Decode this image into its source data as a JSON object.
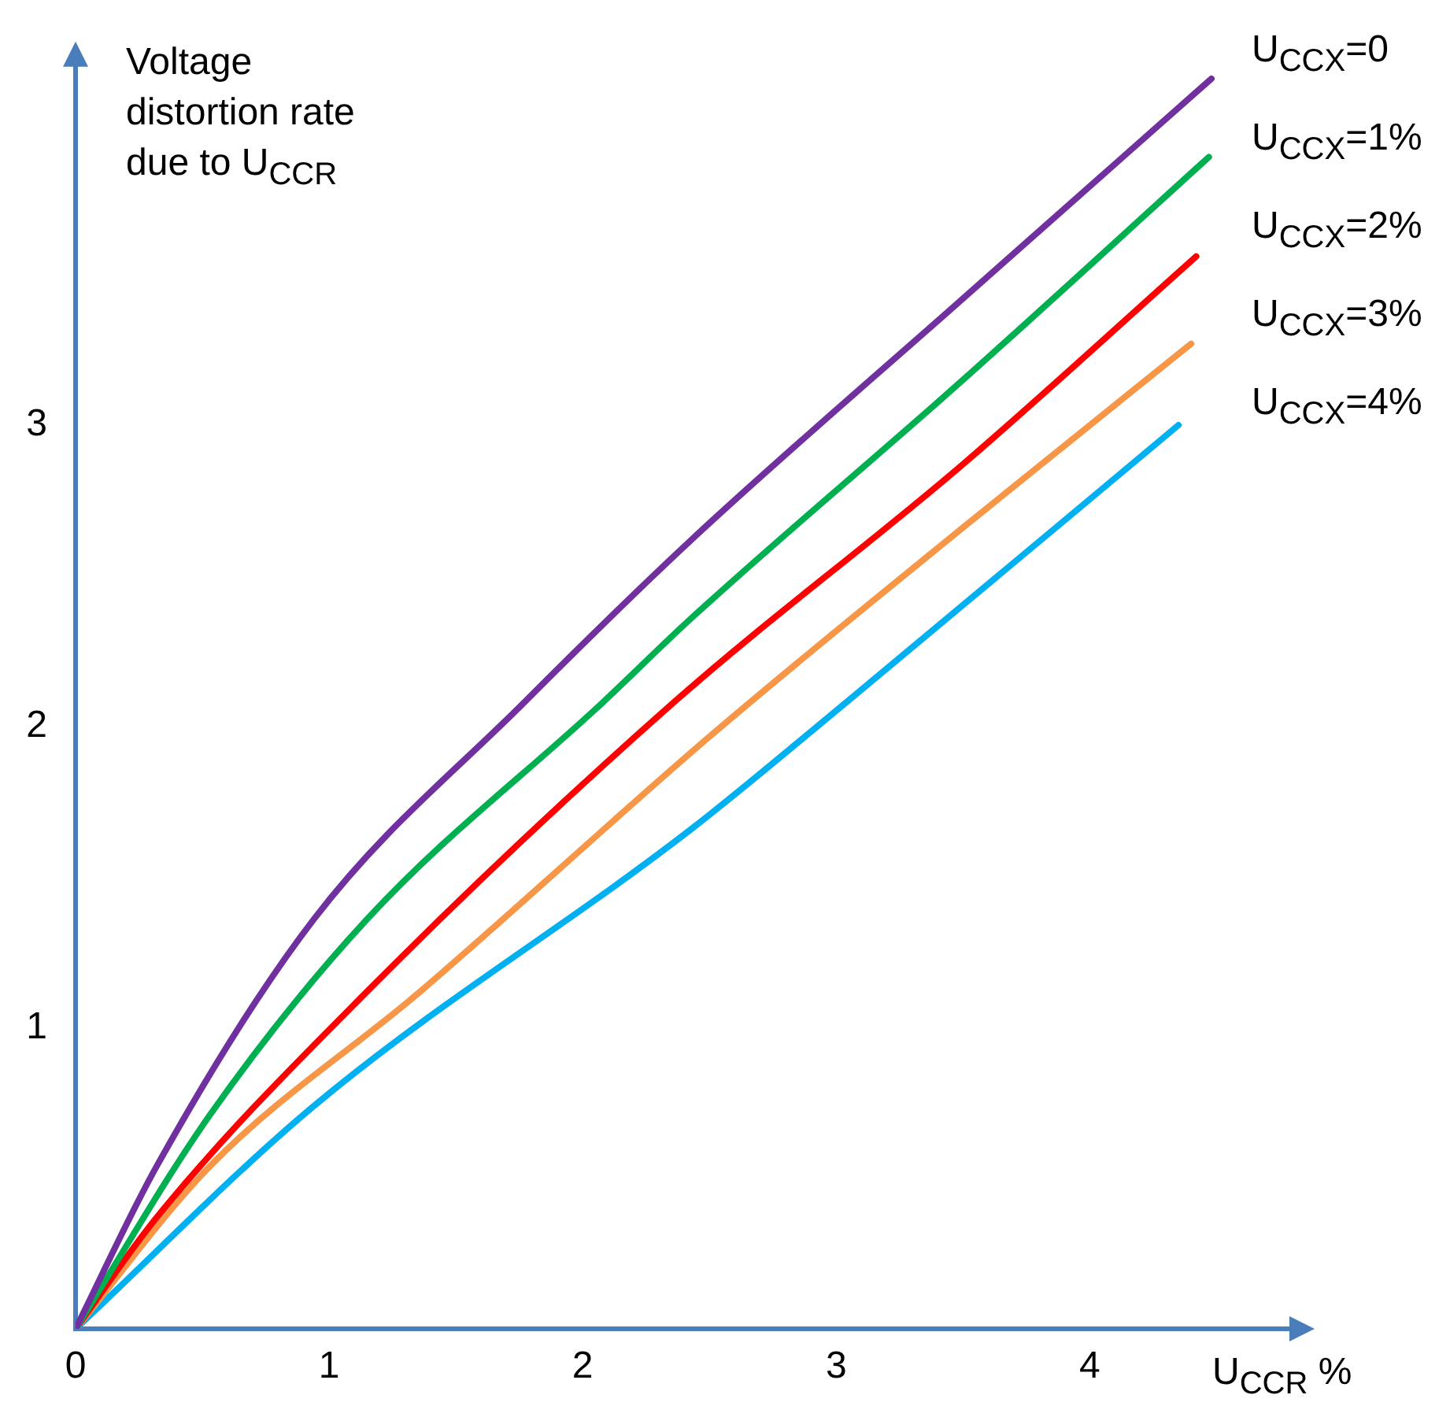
{
  "chart_data": {
    "type": "line",
    "xlabel": "U$_{CCR}$ %",
    "ylabel": "Voltage distortion rate due to U$_{CCR}$",
    "xlim": [
      0,
      4.8
    ],
    "xticks": [
      0,
      1,
      2,
      3,
      4
    ],
    "ylim": [
      0,
      4.2
    ],
    "yticks": [
      1,
      2,
      3
    ],
    "grid": false,
    "legend": false,
    "marker": "none",
    "line_style": "solid",
    "series": [
      {
        "name": "U$_{CCX}$=0",
        "color": "#7030a0",
        "x": [
          0,
          0.32,
          0.94,
          1.77,
          2.43,
          3.5,
          4.48
        ],
        "values": [
          0,
          0.54,
          1.36,
          2.08,
          2.62,
          3.42,
          4.15
        ]
      },
      {
        "name": "U$_{CCX}$=1%",
        "color": "#00b050",
        "x": [
          0,
          0.53,
          1.15,
          2.08,
          2.43,
          3.5,
          4.47
        ],
        "values": [
          0,
          0.71,
          1.36,
          2.08,
          2.36,
          3.15,
          3.89
        ]
      },
      {
        "name": "U$_{CCX}$=2%",
        "color": "#ff0000",
        "x": [
          0,
          0.32,
          1.15,
          2.36,
          3.5,
          4.42
        ],
        "values": [
          0,
          0.37,
          1.12,
          2.08,
          2.87,
          3.56
        ]
      },
      {
        "name": "U$_{CCX}$=3%",
        "color": "#f79646",
        "x": [
          0,
          0.53,
          1.36,
          2.52,
          3.5,
          4.4
        ],
        "values": [
          0,
          0.54,
          1.12,
          1.98,
          2.66,
          3.27
        ]
      },
      {
        "name": "U$_{CCX}$=4%",
        "color": "#00b0f0",
        "x": [
          0,
          0.94,
          2.43,
          3.04,
          4.35
        ],
        "values": [
          0,
          0.74,
          1.66,
          2.08,
          3.0
        ]
      }
    ]
  }
}
